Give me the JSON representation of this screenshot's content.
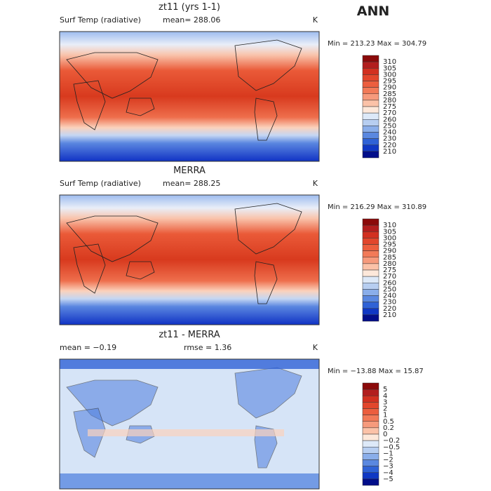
{
  "title": "ANN",
  "panels": [
    {
      "title": "zt11 (yrs 1-1)",
      "left": "Surf Temp (radiative)",
      "center": "mean= 288.06",
      "right": "K",
      "stats": "Min = 213.23 Max = 304.79",
      "colorbar": {
        "labels": [
          "310",
          "305",
          "300",
          "295",
          "290",
          "285",
          "280",
          "275",
          "270",
          "260",
          "250",
          "240",
          "230",
          "220",
          "210"
        ],
        "colors": [
          "#8b0a0a",
          "#b21e1e",
          "#d23020",
          "#e2462c",
          "#ec5e3e",
          "#f27a58",
          "#f69a7c",
          "#fbc2a8",
          "#fde8da",
          "#dde9f8",
          "#b7cef1",
          "#8aaeea",
          "#5a88e0",
          "#2f62d6",
          "#1038c4",
          "#020e8a"
        ]
      }
    },
    {
      "title": "MERRA",
      "left": "Surf Temp (radiative)",
      "center": "mean= 288.25",
      "right": "K",
      "stats": "Min = 216.29 Max = 310.89",
      "colorbar": {
        "labels": [
          "310",
          "305",
          "300",
          "295",
          "290",
          "285",
          "280",
          "275",
          "270",
          "260",
          "250",
          "240",
          "230",
          "220",
          "210"
        ],
        "colors": [
          "#8b0a0a",
          "#b21e1e",
          "#d23020",
          "#e2462c",
          "#ec5e3e",
          "#f27a58",
          "#f69a7c",
          "#fbc2a8",
          "#fde8da",
          "#dde9f8",
          "#b7cef1",
          "#8aaeea",
          "#5a88e0",
          "#2f62d6",
          "#1038c4",
          "#020e8a"
        ]
      }
    },
    {
      "title": "zt11 - MERRA",
      "left": "mean =  −0.19",
      "center": "rmse =   1.36",
      "right": "K",
      "stats": "Min = −13.88 Max =  15.87",
      "colorbar": {
        "labels": [
          "5",
          "4",
          "3",
          "2",
          "1",
          "0.5",
          "0.2",
          "0",
          "−0.2",
          "−0.5",
          "−1",
          "−2",
          "−3",
          "−4",
          "−5"
        ],
        "colors": [
          "#8b0a0a",
          "#b21e1e",
          "#d23020",
          "#e2462c",
          "#ec5e3e",
          "#f27a58",
          "#f69a7c",
          "#fbc2a8",
          "#fde8da",
          "#dde9f8",
          "#b7cef1",
          "#8aaeea",
          "#5a88e0",
          "#2f62d6",
          "#1038c4",
          "#020e8a"
        ]
      }
    }
  ]
}
